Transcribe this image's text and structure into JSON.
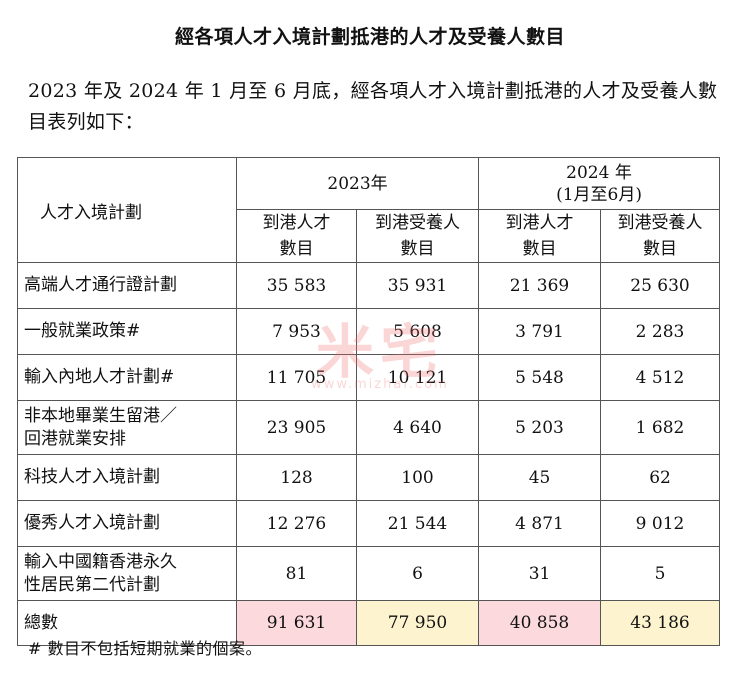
{
  "title": "經各項人才入境計劃抵港的人才及受養人數目",
  "intro": "2023 年及 2024 年 1 月至 6 月底，經各項人才入境計劃抵港的人才及受養人數目表列如下：",
  "table": {
    "scheme_header": "人才入境計劃",
    "year_2023": "2023年",
    "year_2024_line1": "2024 年",
    "year_2024_line2": "(1月至6月)",
    "sub_talent_l1": "到港人才",
    "sub_talent_l2": "數目",
    "sub_dep_l1": "到港受養人",
    "sub_dep_l2": "數目",
    "rows": [
      {
        "scheme_l1": "高端人才通行證計劃",
        "scheme_l2": "",
        "v2023_talent": "35 583",
        "v2023_dep": "35 931",
        "v2024_talent": "21 369",
        "v2024_dep": "25 630"
      },
      {
        "scheme_l1": "一般就業政策#",
        "scheme_l2": "",
        "v2023_talent": "7 953",
        "v2023_dep": "5 608",
        "v2024_talent": "3 791",
        "v2024_dep": "2 283"
      },
      {
        "scheme_l1": "輸入內地人才計劃#",
        "scheme_l2": "",
        "v2023_talent": "11 705",
        "v2023_dep": "10 121",
        "v2024_talent": "5 548",
        "v2024_dep": "4 512"
      },
      {
        "scheme_l1": "非本地畢業生留港／",
        "scheme_l2": "回港就業安排",
        "v2023_talent": "23 905",
        "v2023_dep": "4 640",
        "v2024_talent": "5 203",
        "v2024_dep": "1 682"
      },
      {
        "scheme_l1": "科技人才入境計劃",
        "scheme_l2": "",
        "v2023_talent": "128",
        "v2023_dep": "100",
        "v2024_talent": "45",
        "v2024_dep": "62"
      },
      {
        "scheme_l1": "優秀人才入境計劃",
        "scheme_l2": "",
        "v2023_talent": "12 276",
        "v2023_dep": "21 544",
        "v2024_talent": "4 871",
        "v2024_dep": "9 012"
      },
      {
        "scheme_l1": "輸入中國籍香港永久",
        "scheme_l2": "性居民第二代計劃",
        "v2023_talent": "81",
        "v2023_dep": "6",
        "v2024_talent": "31",
        "v2024_dep": "5"
      }
    ],
    "total": {
      "label": "總數",
      "v2023_talent": "91 631",
      "v2023_dep": "77 950",
      "v2024_talent": "40 858",
      "v2024_dep": "43 186"
    }
  },
  "footnote": "#  數目不包括短期就業的個案。",
  "watermark": {
    "text": "米宅",
    "url": "www.mizhai.com"
  },
  "colors": {
    "total_pink": "#fbd9dc",
    "total_yellow": "#fdf3cf",
    "watermark": "#f07070"
  }
}
